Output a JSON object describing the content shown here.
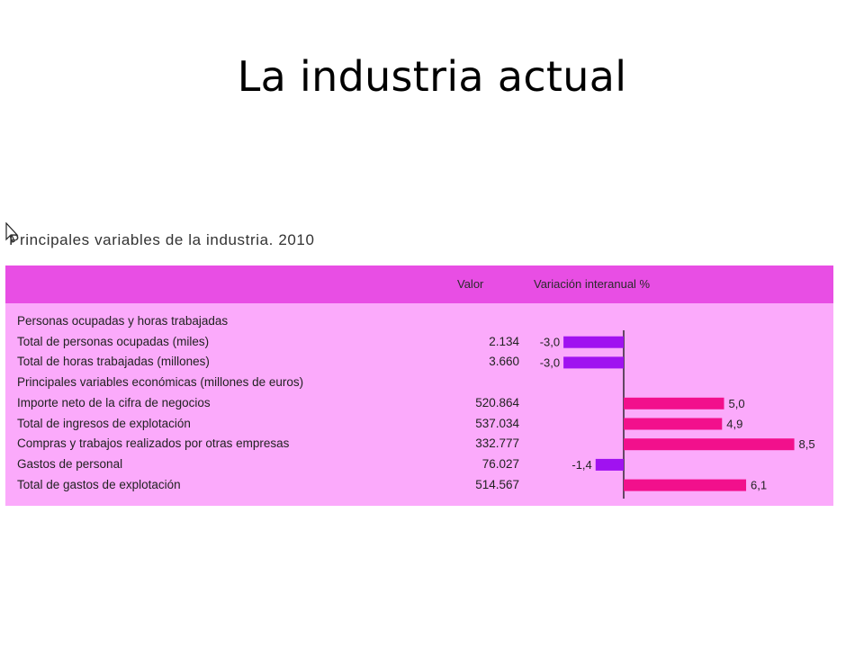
{
  "slide": {
    "title": "La industria actual"
  },
  "figure": {
    "title": "Principales variables de la industria. 2010",
    "header": {
      "col_value": "Valor",
      "col_variation": "Variación interanual %"
    }
  },
  "colors": {
    "header_bg": "#e84ee4",
    "body_bg": "#fbaafb",
    "negative_bar": "#a012f0",
    "positive_bar": "#f2108c"
  },
  "rows": [
    {
      "type": "section",
      "label": "Personas ocupadas y horas trabajadas"
    },
    {
      "type": "data",
      "label": "Total de personas ocupadas (miles)",
      "value": "2.134",
      "change_label": "-3,0"
    },
    {
      "type": "data",
      "label": "Total de horas trabajadas (millones)",
      "value": "3.660",
      "change_label": "-3,0"
    },
    {
      "type": "section",
      "label": "Principales variables económicas (millones de euros)"
    },
    {
      "type": "data",
      "label": "Importe neto de la cifra de negocios",
      "value": "520.864",
      "change_label": "5,0"
    },
    {
      "type": "data",
      "label": "Total de ingresos de explotación",
      "value": "537.034",
      "change_label": "4,9"
    },
    {
      "type": "data",
      "label": "Compras y trabajos realizados por otras empresas",
      "value": "332.777",
      "change_label": "8,5"
    },
    {
      "type": "data",
      "label": "Gastos de personal",
      "value": "76.027",
      "change_label": "-1,4"
    },
    {
      "type": "data",
      "label": "Total de gastos de explotación",
      "value": "514.567",
      "change_label": "6,1"
    }
  ],
  "chart_data": {
    "type": "bar",
    "orientation": "horizontal",
    "title": "Principales variables de la industria. 2010",
    "xlabel": "Variación interanual %",
    "categories": [
      "Total de personas ocupadas (miles)",
      "Total de horas trabajadas (millones)",
      "Importe neto de la cifra de negocios",
      "Total de ingresos de explotación",
      "Compras y trabajos realizados por otras empresas",
      "Gastos de personal",
      "Total de gastos de explotación"
    ],
    "values": [
      -3.0,
      -3.0,
      5.0,
      4.9,
      8.5,
      -1.4,
      6.1
    ],
    "data_labels": [
      "-3,0",
      "-3,0",
      "5,0",
      "4,9",
      "8,5",
      "-1,4",
      "6,1"
    ],
    "xlim": [
      -3.6,
      8.8
    ]
  }
}
